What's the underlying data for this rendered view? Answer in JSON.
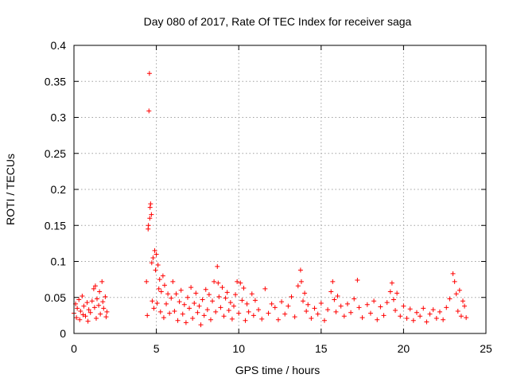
{
  "chart_data": {
    "type": "scatter",
    "title": "Day 080 of 2017, Rate Of TEC Index for receiver saga",
    "xlabel": "GPS time / hours",
    "ylabel": "ROTI / TECUs",
    "xlim": [
      0,
      25
    ],
    "ylim": [
      0,
      0.4
    ],
    "x_ticks": [
      0,
      5,
      10,
      15,
      20,
      25
    ],
    "x_tick_labels": [
      "0",
      "5",
      "10",
      "15",
      "20",
      "25"
    ],
    "y_ticks": [
      0,
      0.05,
      0.1,
      0.15,
      0.2,
      0.25,
      0.3,
      0.35,
      0.4
    ],
    "y_tick_labels": [
      "0",
      "0.05",
      "0.1",
      "0.15",
      "0.2",
      "0.25",
      "0.3",
      "0.35",
      "0.4"
    ],
    "grid": true,
    "marker": "+",
    "color": "#ff0000",
    "series": [
      {
        "name": "ROTI",
        "points": [
          [
            0.0,
            0.028
          ],
          [
            0.1,
            0.041
          ],
          [
            0.15,
            0.022
          ],
          [
            0.2,
            0.035
          ],
          [
            0.3,
            0.047
          ],
          [
            0.35,
            0.019
          ],
          [
            0.4,
            0.031
          ],
          [
            0.5,
            0.052
          ],
          [
            0.55,
            0.026
          ],
          [
            0.6,
            0.038
          ],
          [
            0.7,
            0.024
          ],
          [
            0.8,
            0.043
          ],
          [
            0.85,
            0.017
          ],
          [
            0.9,
            0.033
          ],
          [
            1.0,
            0.029
          ],
          [
            1.1,
            0.045
          ],
          [
            1.2,
            0.062
          ],
          [
            1.25,
            0.036
          ],
          [
            1.3,
            0.066
          ],
          [
            1.35,
            0.021
          ],
          [
            1.4,
            0.048
          ],
          [
            1.5,
            0.039
          ],
          [
            1.55,
            0.058
          ],
          [
            1.6,
            0.027
          ],
          [
            1.7,
            0.072
          ],
          [
            1.75,
            0.044
          ],
          [
            1.8,
            0.035
          ],
          [
            1.9,
            0.051
          ],
          [
            1.95,
            0.023
          ],
          [
            2.0,
            0.03
          ],
          [
            4.4,
            0.072
          ],
          [
            4.45,
            0.025
          ],
          [
            4.5,
            0.145
          ],
          [
            4.52,
            0.15
          ],
          [
            4.55,
            0.309
          ],
          [
            4.58,
            0.361
          ],
          [
            4.6,
            0.16
          ],
          [
            4.62,
            0.175
          ],
          [
            4.65,
            0.18
          ],
          [
            4.7,
            0.165
          ],
          [
            4.72,
            0.098
          ],
          [
            4.75,
            0.045
          ],
          [
            4.8,
            0.105
          ],
          [
            4.85,
            0.035
          ],
          [
            4.9,
            0.115
          ],
          [
            4.95,
            0.088
          ],
          [
            5.0,
            0.11
          ],
          [
            5.05,
            0.042
          ],
          [
            5.1,
            0.095
          ],
          [
            5.15,
            0.062
          ],
          [
            5.2,
            0.075
          ],
          [
            5.25,
            0.03
          ],
          [
            5.3,
            0.058
          ],
          [
            5.4,
            0.08
          ],
          [
            5.45,
            0.022
          ],
          [
            5.5,
            0.067
          ],
          [
            5.6,
            0.041
          ],
          [
            5.7,
            0.055
          ],
          [
            5.8,
            0.028
          ],
          [
            5.9,
            0.049
          ],
          [
            6.0,
            0.072
          ],
          [
            6.1,
            0.031
          ],
          [
            6.2,
            0.055
          ],
          [
            6.3,
            0.018
          ],
          [
            6.4,
            0.044
          ],
          [
            6.5,
            0.06
          ],
          [
            6.6,
            0.027
          ],
          [
            6.7,
            0.04
          ],
          [
            6.8,
            0.015
          ],
          [
            6.9,
            0.05
          ],
          [
            7.0,
            0.035
          ],
          [
            7.1,
            0.064
          ],
          [
            7.2,
            0.021
          ],
          [
            7.3,
            0.042
          ],
          [
            7.4,
            0.056
          ],
          [
            7.5,
            0.029
          ],
          [
            7.6,
            0.038
          ],
          [
            7.7,
            0.012
          ],
          [
            7.8,
            0.047
          ],
          [
            7.9,
            0.025
          ],
          [
            8.0,
            0.061
          ],
          [
            8.1,
            0.033
          ],
          [
            8.2,
            0.054
          ],
          [
            8.3,
            0.019
          ],
          [
            8.4,
            0.045
          ],
          [
            8.5,
            0.072
          ],
          [
            8.6,
            0.03
          ],
          [
            8.7,
            0.093
          ],
          [
            8.75,
            0.07
          ],
          [
            8.8,
            0.051
          ],
          [
            8.9,
            0.036
          ],
          [
            9.0,
            0.064
          ],
          [
            9.1,
            0.024
          ],
          [
            9.2,
            0.049
          ],
          [
            9.3,
            0.057
          ],
          [
            9.4,
            0.032
          ],
          [
            9.5,
            0.043
          ],
          [
            9.6,
            0.02
          ],
          [
            9.7,
            0.038
          ],
          [
            9.8,
            0.054
          ],
          [
            9.9,
            0.072
          ],
          [
            10.0,
            0.028
          ],
          [
            10.1,
            0.07
          ],
          [
            10.2,
            0.046
          ],
          [
            10.3,
            0.063
          ],
          [
            10.4,
            0.018
          ],
          [
            10.5,
            0.041
          ],
          [
            10.6,
            0.03
          ],
          [
            10.8,
            0.055
          ],
          [
            10.9,
            0.025
          ],
          [
            11.0,
            0.046
          ],
          [
            11.2,
            0.033
          ],
          [
            11.4,
            0.02
          ],
          [
            11.6,
            0.062
          ],
          [
            11.8,
            0.028
          ],
          [
            12.0,
            0.041
          ],
          [
            12.2,
            0.036
          ],
          [
            12.4,
            0.019
          ],
          [
            12.6,
            0.044
          ],
          [
            12.8,
            0.027
          ],
          [
            13.0,
            0.038
          ],
          [
            13.2,
            0.051
          ],
          [
            13.4,
            0.023
          ],
          [
            13.6,
            0.066
          ],
          [
            13.75,
            0.088
          ],
          [
            13.8,
            0.072
          ],
          [
            13.9,
            0.045
          ],
          [
            14.0,
            0.056
          ],
          [
            14.1,
            0.031
          ],
          [
            14.2,
            0.04
          ],
          [
            14.4,
            0.021
          ],
          [
            14.6,
            0.035
          ],
          [
            14.8,
            0.027
          ],
          [
            15.0,
            0.042
          ],
          [
            15.2,
            0.018
          ],
          [
            15.4,
            0.033
          ],
          [
            15.6,
            0.058
          ],
          [
            15.7,
            0.072
          ],
          [
            15.8,
            0.047
          ],
          [
            15.9,
            0.03
          ],
          [
            16.0,
            0.052
          ],
          [
            16.2,
            0.038
          ],
          [
            16.4,
            0.024
          ],
          [
            16.6,
            0.041
          ],
          [
            16.8,
            0.029
          ],
          [
            17.0,
            0.048
          ],
          [
            17.2,
            0.074
          ],
          [
            17.3,
            0.036
          ],
          [
            17.5,
            0.022
          ],
          [
            17.8,
            0.04
          ],
          [
            18.0,
            0.028
          ],
          [
            18.2,
            0.045
          ],
          [
            18.4,
            0.019
          ],
          [
            18.6,
            0.037
          ],
          [
            18.8,
            0.025
          ],
          [
            19.0,
            0.043
          ],
          [
            19.2,
            0.058
          ],
          [
            19.3,
            0.07
          ],
          [
            19.4,
            0.047
          ],
          [
            19.5,
            0.032
          ],
          [
            19.6,
            0.056
          ],
          [
            19.8,
            0.024
          ],
          [
            20.0,
            0.038
          ],
          [
            20.2,
            0.021
          ],
          [
            20.4,
            0.034
          ],
          [
            20.6,
            0.018
          ],
          [
            20.8,
            0.029
          ],
          [
            21.0,
            0.024
          ],
          [
            21.2,
            0.035
          ],
          [
            21.4,
            0.016
          ],
          [
            21.6,
            0.027
          ],
          [
            21.8,
            0.033
          ],
          [
            22.0,
            0.021
          ],
          [
            22.2,
            0.03
          ],
          [
            22.4,
            0.019
          ],
          [
            22.6,
            0.036
          ],
          [
            22.8,
            0.048
          ],
          [
            23.0,
            0.083
          ],
          [
            23.1,
            0.072
          ],
          [
            23.2,
            0.055
          ],
          [
            23.3,
            0.031
          ],
          [
            23.4,
            0.06
          ],
          [
            23.5,
            0.024
          ],
          [
            23.6,
            0.045
          ],
          [
            23.7,
            0.038
          ],
          [
            23.8,
            0.022
          ]
        ]
      }
    ]
  }
}
